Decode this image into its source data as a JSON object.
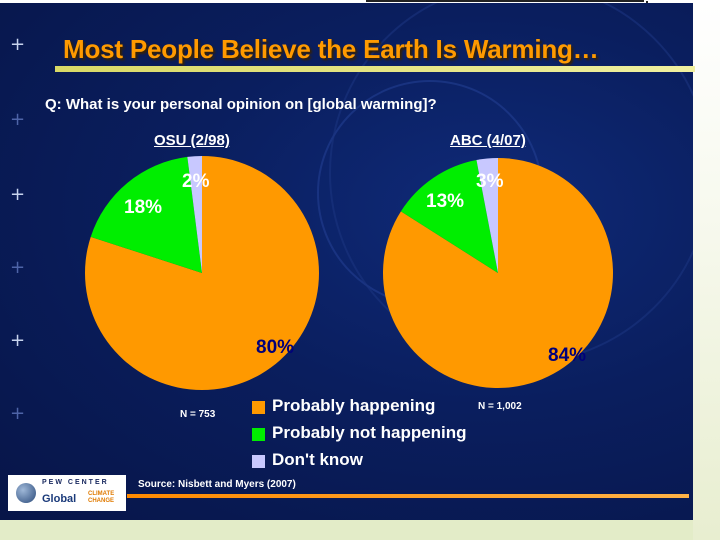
{
  "slide": {
    "title": "Most People Believe the Earth Is Warming…",
    "question": "Q: What is your personal opinion on [global warming]?",
    "source": "Source: Nisbett and Myers (2007)",
    "logo": {
      "top": "PEW CENTER",
      "main": "Global",
      "sub": "CLIMATE CHANGE"
    }
  },
  "colors": {
    "happening": "#ff9900",
    "not_happening": "#00ee00",
    "dont_know": "#c8c8ff",
    "title": "#ff9a00",
    "background": "#0a1e5e"
  },
  "chart_data": [
    {
      "type": "pie",
      "title": "OSU (2/98)",
      "n_label": "N = 753",
      "slices": [
        {
          "name": "Probably happening",
          "value": 80,
          "label": "80%"
        },
        {
          "name": "Probably not happening",
          "value": 18,
          "label": "18%"
        },
        {
          "name": "Don't know",
          "value": 2,
          "label": "2%"
        }
      ]
    },
    {
      "type": "pie",
      "title": "ABC (4/07)",
      "n_label": "N = 1,002",
      "slices": [
        {
          "name": "Probably happening",
          "value": 84,
          "label": "84%"
        },
        {
          "name": "Probably not happening",
          "value": 13,
          "label": "13%"
        },
        {
          "name": "Don't know",
          "value": 3,
          "label": "3%"
        }
      ]
    }
  ],
  "legend": [
    {
      "label": "Probably happening",
      "color": "#ff9900"
    },
    {
      "label": "Probably not happening",
      "color": "#00ee00"
    },
    {
      "label": "Don't know",
      "color": "#c8c8ff"
    }
  ]
}
